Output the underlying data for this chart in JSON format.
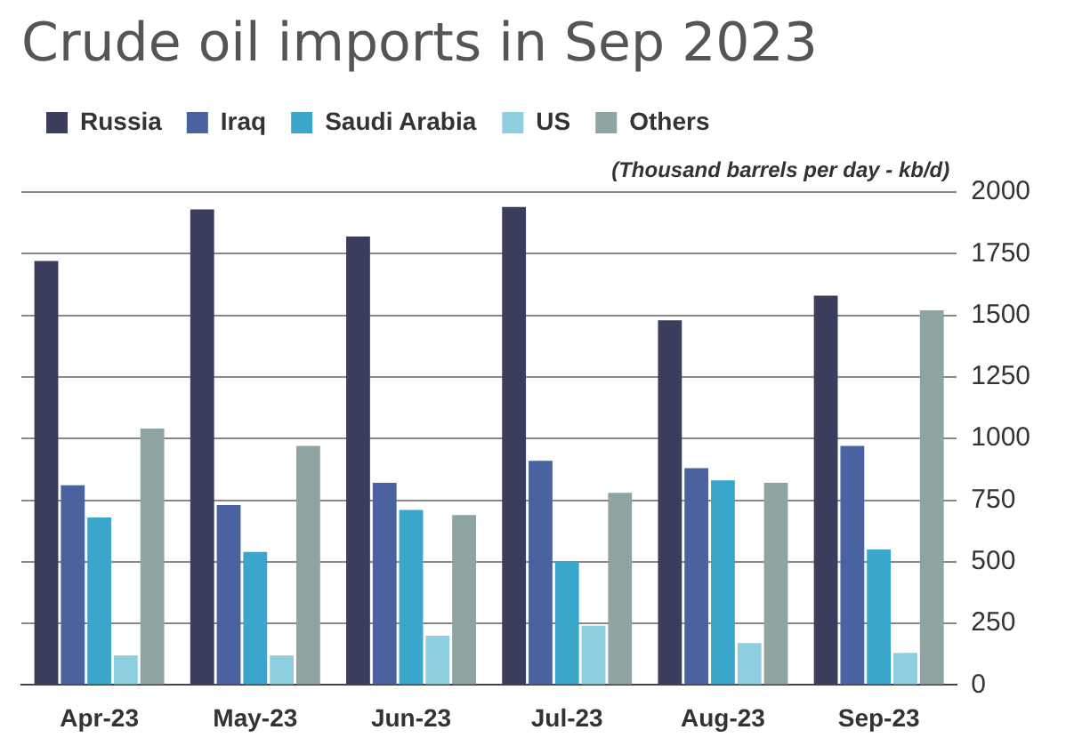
{
  "chart_data": {
    "type": "bar",
    "title": "Crude oil imports in Sep 2023",
    "ylabel": "(Thousand barrels per day - kb/d)",
    "categories": [
      "Apr-23",
      "May-23",
      "Jun-23",
      "Jul-23",
      "Aug-23",
      "Sep-23"
    ],
    "series": [
      {
        "name": "Russia",
        "color": "#3a3d5c",
        "values": [
          1720,
          1930,
          1820,
          1940,
          1480,
          1580
        ]
      },
      {
        "name": "Iraq",
        "color": "#4a62a0",
        "values": [
          810,
          730,
          820,
          910,
          880,
          970
        ]
      },
      {
        "name": "Saudi Arabia",
        "color": "#3aa6cc",
        "values": [
          680,
          540,
          710,
          500,
          830,
          550
        ]
      },
      {
        "name": "US",
        "color": "#8dcfe0",
        "values": [
          120,
          120,
          200,
          240,
          170,
          130
        ]
      },
      {
        "name": "Others",
        "color": "#8fa3a3",
        "values": [
          1040,
          970,
          690,
          780,
          820,
          1520
        ]
      }
    ],
    "ylim": [
      0,
      2000
    ],
    "yticks": [
      0,
      250,
      500,
      750,
      1000,
      1250,
      1500,
      1750,
      2000
    ],
    "grid": "y",
    "legend": "top left"
  }
}
